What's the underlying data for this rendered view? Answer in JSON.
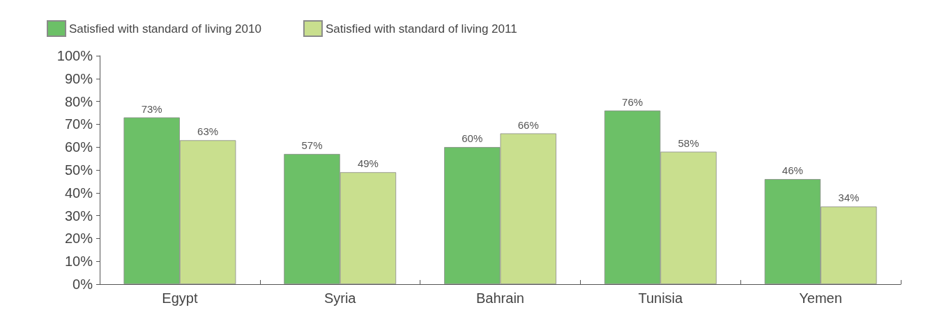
{
  "chart_data": {
    "type": "bar",
    "categories": [
      "Egypt",
      "Syria",
      "Bahrain",
      "Tunisia",
      "Yemen"
    ],
    "series": [
      {
        "name": "Satisfied with standard of living 2010",
        "color": "#6cc067",
        "values": [
          73,
          57,
          60,
          76,
          46
        ],
        "value_labels": [
          "73%",
          "57%",
          "60%",
          "76%",
          "46%"
        ]
      },
      {
        "name": "Satisfied with standard of living 2011",
        "color": "#c9df8e",
        "values": [
          63,
          49,
          66,
          58,
          34
        ],
        "value_labels": [
          "63%",
          "49%",
          "66%",
          "58%",
          "34%"
        ]
      }
    ],
    "ylim": [
      0,
      100
    ],
    "yticks": [
      {
        "value": 0,
        "label": "0%"
      },
      {
        "value": 10,
        "label": "10%"
      },
      {
        "value": 20,
        "label": "20%"
      },
      {
        "value": 30,
        "label": "30%"
      },
      {
        "value": 40,
        "label": "40%"
      },
      {
        "value": 50,
        "label": "50%"
      },
      {
        "value": 60,
        "label": "60%"
      },
      {
        "value": 70,
        "label": "70%"
      },
      {
        "value": 80,
        "label": "80%"
      },
      {
        "value": 90,
        "label": "90%"
      },
      {
        "value": 100,
        "label": "100%"
      }
    ],
    "grid": false,
    "legend": "top left"
  }
}
